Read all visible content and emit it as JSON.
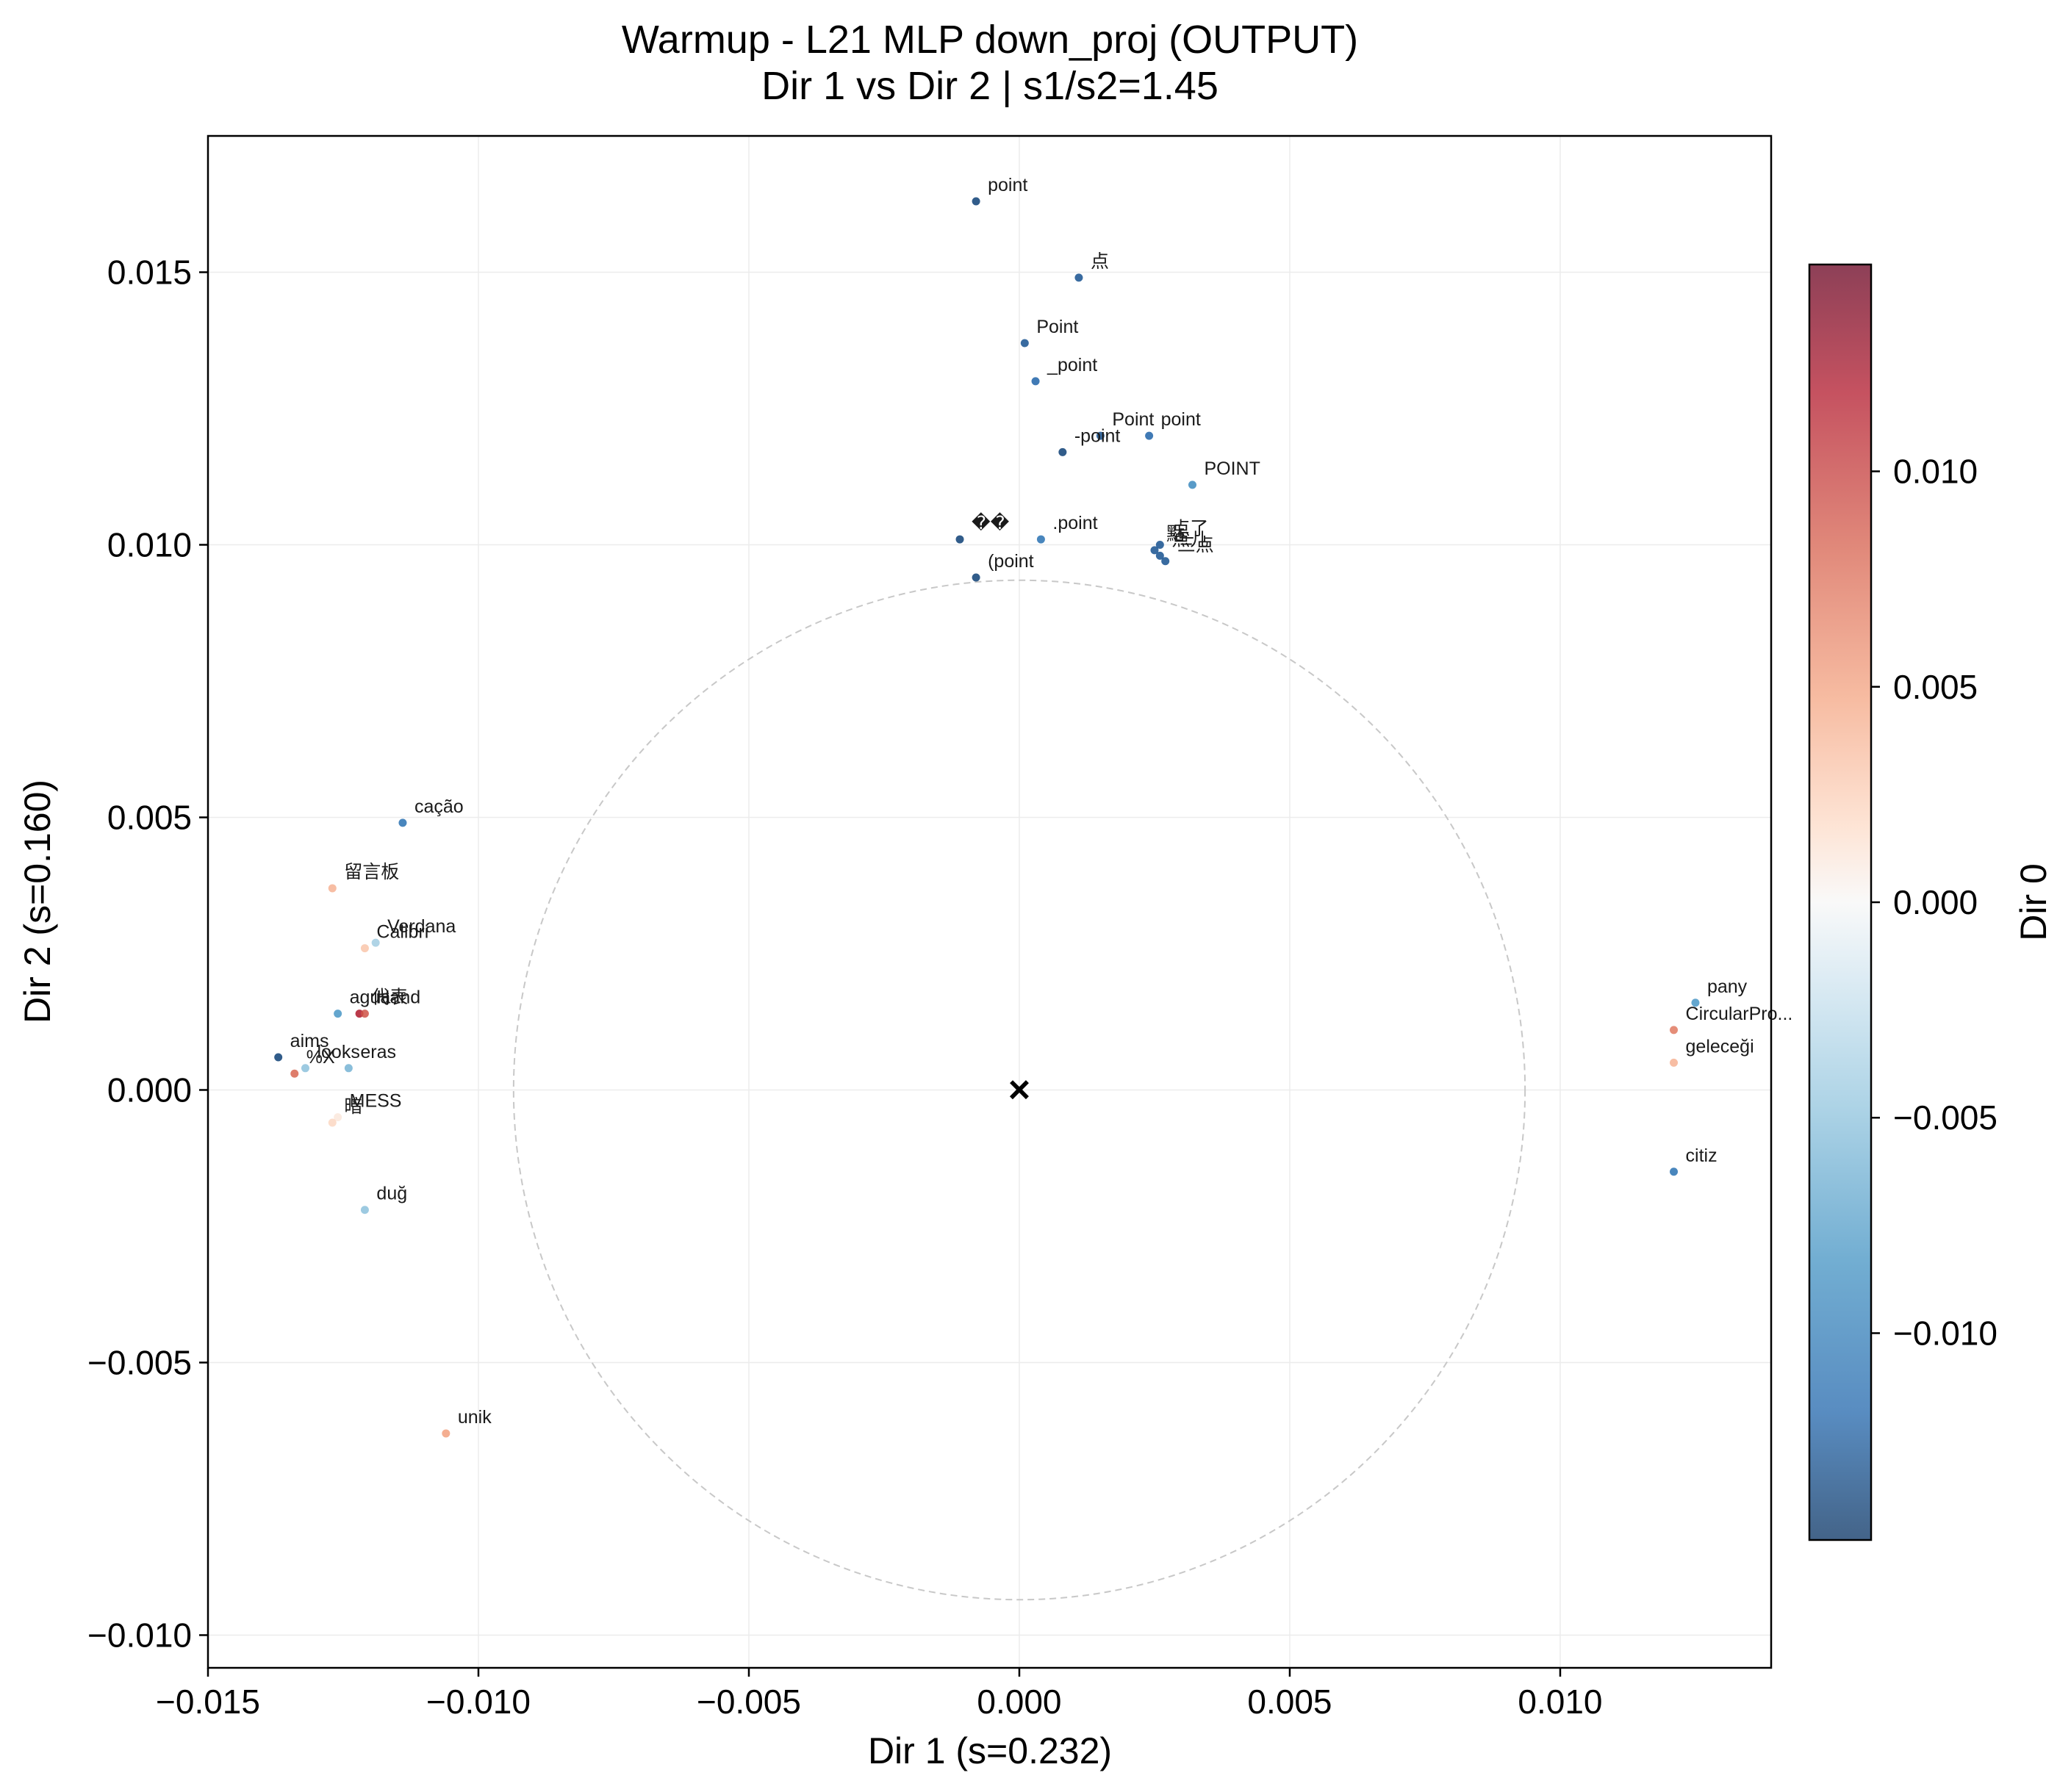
{
  "chart_data": {
    "type": "scatter",
    "title": "Warmup - L21 MLP down_proj (OUTPUT)",
    "subtitle": "Dir 1 vs Dir 2 | s1/s2=1.45",
    "xlabel": "Dir 1 (s=0.232)",
    "ylabel": "Dir 2 (s=0.160)",
    "xlim": [
      -0.015,
      0.0139
    ],
    "ylim": [
      -0.0106,
      0.0175
    ],
    "xticks": [
      -0.015,
      -0.01,
      -0.005,
      0.0,
      0.005,
      0.01
    ],
    "xtick_labels": [
      "−0.015",
      "−0.010",
      "−0.005",
      "0.000",
      "0.005",
      "0.010"
    ],
    "yticks": [
      -0.01,
      -0.005,
      0.0,
      0.005,
      0.01,
      0.015
    ],
    "ytick_labels": [
      "−0.010",
      "−0.005",
      "0.000",
      "0.005",
      "0.010",
      "0.015"
    ],
    "grid": true,
    "colorbar": {
      "label": "Dir 0",
      "colormap": "RdBu_r",
      "range": [
        -0.0148,
        0.0148
      ],
      "ticks": [
        -0.01,
        -0.005,
        0.0,
        0.005,
        0.01
      ],
      "tick_labels": [
        "−0.010",
        "−0.005",
        "0.000",
        "0.005",
        "0.010"
      ]
    },
    "reference_circle_radius": 0.00935,
    "center_marker": {
      "x": 0,
      "y": 0,
      "symbol": "×"
    },
    "labeled_points": [
      {
        "text": "point",
        "x": -0.0008,
        "y": 0.0163,
        "c": -0.014
      },
      {
        "text": "点",
        "x": 0.0011,
        "y": 0.0149,
        "c": -0.013
      },
      {
        "text": "Point",
        "x": 0.0001,
        "y": 0.0137,
        "c": -0.013
      },
      {
        "text": "_point",
        "x": 0.0003,
        "y": 0.013,
        "c": -0.012
      },
      {
        "text": "Point",
        "x": 0.0015,
        "y": 0.012,
        "c": -0.013
      },
      {
        "text": "point",
        "x": 0.0024,
        "y": 0.012,
        "c": -0.012
      },
      {
        "text": "-point",
        "x": 0.0008,
        "y": 0.0117,
        "c": -0.014
      },
      {
        "text": "POINT",
        "x": 0.0032,
        "y": 0.0111,
        "c": -0.009
      },
      {
        "text": "��",
        "x": -0.0011,
        "y": 0.0101,
        "c": -0.014
      },
      {
        "text": ".point",
        "x": 0.0004,
        "y": 0.0101,
        "c": -0.011
      },
      {
        "text": "点了",
        "x": 0.0026,
        "y": 0.01,
        "c": -0.013
      },
      {
        "text": "點",
        "x": 0.0025,
        "y": 0.0099,
        "c": -0.013
      },
      {
        "text": "点儿",
        "x": 0.0026,
        "y": 0.0098,
        "c": -0.013
      },
      {
        "text": "三点",
        "x": 0.0027,
        "y": 0.0097,
        "c": -0.013
      },
      {
        "text": "(point",
        "x": -0.0008,
        "y": 0.0094,
        "c": -0.014
      },
      {
        "text": "cação",
        "x": -0.0114,
        "y": 0.0049,
        "c": -0.011
      },
      {
        "text": "留言板",
        "x": -0.0127,
        "y": 0.0037,
        "c": 0.004
      },
      {
        "text": "Verdana",
        "x": -0.0119,
        "y": 0.0027,
        "c": -0.004
      },
      {
        "text": "Calibri",
        "x": -0.0121,
        "y": 0.0026,
        "c": 0.003
      },
      {
        "text": "agua",
        "x": -0.0126,
        "y": 0.0014,
        "c": -0.008
      },
      {
        "text": "代表",
        "x": -0.0122,
        "y": 0.0014,
        "c": 0.012
      },
      {
        "text": "Hand",
        "x": -0.0121,
        "y": 0.0014,
        "c": 0.009
      },
      {
        "text": "aims",
        "x": -0.0137,
        "y": 0.0006,
        "c": -0.014
      },
      {
        "text": "%X",
        "x": -0.0134,
        "y": 0.0003,
        "c": 0.008
      },
      {
        "text": "looks",
        "x": -0.0132,
        "y": 0.0004,
        "c": -0.005
      },
      {
        "text": "eras",
        "x": -0.0124,
        "y": 0.0004,
        "c": -0.006
      },
      {
        "text": "MESS",
        "x": -0.0126,
        "y": -0.0005,
        "c": 0.001
      },
      {
        "text": "暗",
        "x": -0.0127,
        "y": -0.0006,
        "c": 0.002
      },
      {
        "text": "duğ",
        "x": -0.0121,
        "y": -0.0022,
        "c": -0.005
      },
      {
        "text": "unik",
        "x": -0.0106,
        "y": -0.0063,
        "c": 0.005
      },
      {
        "text": "pany",
        "x": 0.0125,
        "y": 0.0016,
        "c": -0.008
      },
      {
        "text": "CircularPro...",
        "x": 0.0121,
        "y": 0.0011,
        "c": 0.007
      },
      {
        "text": "geleceği",
        "x": 0.0121,
        "y": 0.0005,
        "c": 0.004
      },
      {
        "text": "citiz",
        "x": 0.0121,
        "y": -0.0015,
        "c": -0.011
      }
    ]
  }
}
